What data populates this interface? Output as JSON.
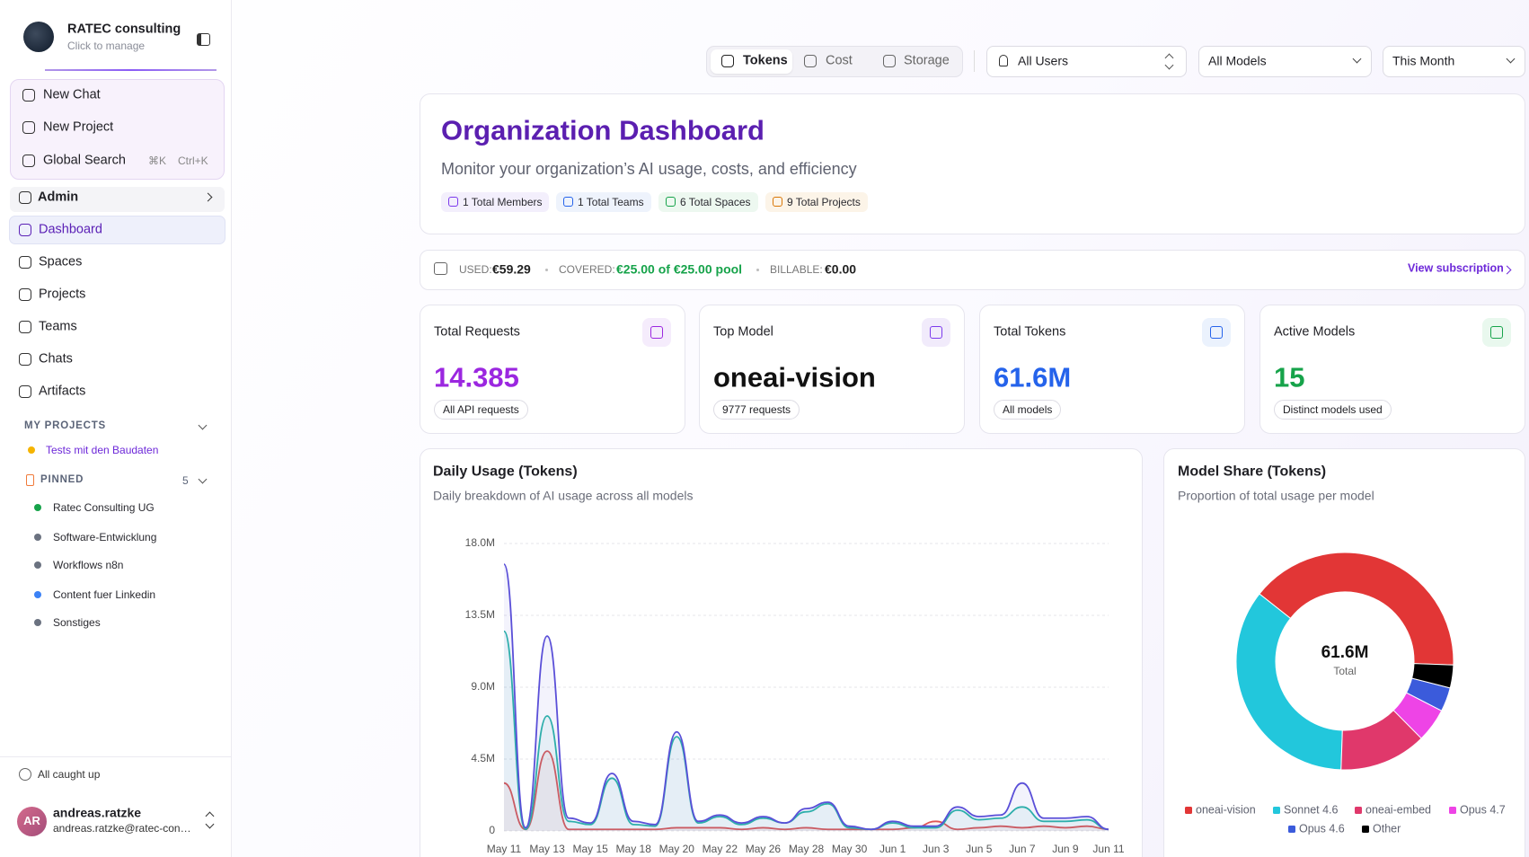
{
  "sidebar": {
    "org_name": "RATEC consulting",
    "org_hint": "Click to manage",
    "actions": [
      {
        "label": "New Chat"
      },
      {
        "label": "New Project"
      },
      {
        "label": "Global Search",
        "shortcuts": [
          "⌘K",
          "Ctrl+K"
        ]
      }
    ],
    "admin": "Admin",
    "nav": [
      "Dashboard",
      "Spaces",
      "Projects",
      "Teams",
      "Chats",
      "Artifacts"
    ],
    "my_projects_heading": "MY PROJECTS",
    "my_projects": [
      {
        "name": "Tests mit den Baudaten",
        "color": "#f5b400"
      }
    ],
    "pinned_heading": "PINNED",
    "pinned_count": 5,
    "pinned": [
      {
        "name": "Ratec Consulting UG",
        "color": "#16a34a"
      },
      {
        "name": "Software-Entwicklung",
        "color": "#6b7280"
      },
      {
        "name": "Workflows n8n",
        "color": "#6b7280"
      },
      {
        "name": "Content fuer Linkedin",
        "color": "#3b82f6"
      },
      {
        "name": "Sonstiges",
        "color": "#6b7280"
      }
    ],
    "status": "All caught up",
    "user": {
      "initials": "AR",
      "name": "andreas.ratzke",
      "email": "andreas.ratzke@ratec-con…"
    }
  },
  "toolbar": {
    "tabs": [
      "Tokens",
      "Cost",
      "Storage"
    ],
    "filters": [
      "All Users",
      "All Models",
      "This Month"
    ]
  },
  "header": {
    "title": "Organization Dashboard",
    "subtitle": "Monitor your organization’s AI usage, costs, and efficiency",
    "badges": [
      {
        "text": "1 Total Members",
        "color": "#7c3aed",
        "bg": "#f3effc"
      },
      {
        "text": "1 Total Teams",
        "color": "#2563eb",
        "bg": "#eef3fc"
      },
      {
        "text": "6 Total Spaces",
        "color": "#16a34a",
        "bg": "#edf8f0"
      },
      {
        "text": "9 Total Projects",
        "color": "#d97706",
        "bg": "#fcf4e8"
      }
    ]
  },
  "billing": {
    "used_label": "USED:",
    "used": "€59.29",
    "covered_label": "COVERED:",
    "covered": "€25.00 of €25.00 pool",
    "billable_label": "BILLABLE:",
    "billable": "€0.00",
    "link": "View subscription"
  },
  "stats": [
    {
      "label": "Total Requests",
      "value": "14.385",
      "caption": "All API requests",
      "color": "#9b27e0",
      "icon_bg": "#f5ecfc"
    },
    {
      "label": "Top Model",
      "value": "oneai-vision",
      "caption": "9777 requests",
      "color": "#111111",
      "icon_bg": "#f1ebfb"
    },
    {
      "label": "Total Tokens",
      "value": "61.6M",
      "caption": "All models",
      "color": "#2563eb",
      "icon_bg": "#ebf2fd"
    },
    {
      "label": "Active Models",
      "value": "15",
      "caption": "Distinct models used",
      "color": "#16a34a",
      "icon_bg": "#e9f8ee"
    }
  ],
  "chart_data": [
    {
      "type": "line",
      "title": "Daily Usage (Tokens)",
      "subtitle": "Daily breakdown of AI usage across all models",
      "categories": [
        "May 11",
        null,
        "May 13",
        null,
        "May 15",
        null,
        "May 18",
        null,
        "May 20",
        null,
        "May 22",
        null,
        "May 26",
        null,
        "May 28",
        null,
        "May 30",
        null,
        "Jun 1",
        null,
        "Jun 3",
        null,
        "Jun 5",
        null,
        "Jun 7",
        null,
        "Jun 9",
        null,
        "Jun 11"
      ],
      "series": [
        {
          "color": "#e05555",
          "values": [
            3.0,
            0.1,
            5.0,
            0.1,
            0.1,
            0.1,
            0.1,
            0.1,
            0.2,
            0.2,
            0.2,
            0.1,
            0.2,
            0.1,
            0.2,
            0.1,
            0.1,
            0.1,
            0.1,
            0.2,
            0.6,
            0.1,
            0.2,
            0.3,
            0.2,
            0.3,
            0.2,
            0.3,
            0.1
          ]
        },
        {
          "color": "#2bb5a8",
          "values": [
            12.5,
            0.1,
            7.2,
            0.6,
            0.4,
            3.3,
            0.4,
            0.3,
            5.9,
            0.5,
            0.9,
            0.4,
            0.8,
            0.5,
            1.2,
            1.7,
            0.2,
            0.1,
            0.5,
            0.2,
            0.2,
            1.3,
            0.7,
            0.8,
            1.5,
            0.6,
            0.6,
            0.7,
            0.1
          ]
        },
        {
          "color": "#5a4fd8",
          "values": [
            16.7,
            0.2,
            12.2,
            0.8,
            0.5,
            3.6,
            0.6,
            0.4,
            6.2,
            0.6,
            1.0,
            0.5,
            0.9,
            0.5,
            1.4,
            1.8,
            0.3,
            0.1,
            0.6,
            0.3,
            0.3,
            1.5,
            0.9,
            1.0,
            3.0,
            0.8,
            0.8,
            0.9,
            0.1
          ]
        }
      ],
      "ylim": [
        0,
        18
      ],
      "yticks": [
        0,
        {
          "value": 4.5,
          "label": "4.5M"
        },
        {
          "value": 9,
          "label": "9.0M"
        },
        {
          "value": 13.5,
          "label": "13.5M"
        },
        {
          "value": 18,
          "label": "18.0M"
        }
      ],
      "grid": true
    },
    {
      "type": "pie",
      "title": "Model Share (Tokens)",
      "subtitle": "Proportion of total usage per model",
      "categories": [
        "oneai-vision",
        "Sonnet 4.6",
        "oneai-embed",
        "Opus 4.7",
        "Opus 4.6",
        "Other"
      ],
      "values": [
        24.6,
        21.6,
        8.0,
        3.1,
        2.2,
        2.1
      ],
      "colors": [
        "#e23636",
        "#22c7dc",
        "#e0386b",
        "#ee44e6",
        "#3b5bdb",
        "#000000"
      ],
      "total_label": "61.6M",
      "total_caption": "Total"
    }
  ]
}
